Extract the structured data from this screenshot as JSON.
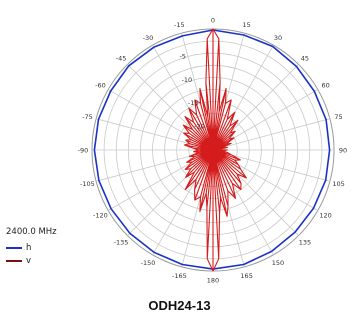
{
  "chart_data": {
    "type": "polar",
    "frequency_label": "2400.0 MHz",
    "caption": "ODH24-13",
    "angle_labels": [
      "0",
      "15",
      "30",
      "45",
      "60",
      "75",
      "90",
      "105",
      "120",
      "135",
      "150",
      "165",
      "180",
      "-165",
      "-150",
      "-135",
      "-120",
      "-105",
      "-90",
      "-75",
      "-60",
      "-45",
      "-30",
      "-15"
    ],
    "radial_labels": [
      "-5",
      "-10",
      "-15",
      "-20"
    ],
    "grid": true,
    "legend_position": "bottom-left",
    "series": [
      {
        "name": "h",
        "color": "#1a33c4",
        "angles": [
          -180,
          -165,
          -150,
          -135,
          -120,
          -105,
          -90,
          -75,
          -60,
          -45,
          -30,
          -15,
          0,
          15,
          30,
          45,
          60,
          75,
          90,
          105,
          120,
          135,
          150,
          165,
          180
        ],
        "values": [
          -0.4,
          -0.5,
          -0.6,
          -0.7,
          -0.7,
          -0.6,
          -0.5,
          -0.5,
          -0.6,
          -0.4,
          -0.5,
          -0.6,
          -0.2,
          -0.4,
          -0.3,
          -0.6,
          -0.8,
          -0.8,
          -0.9,
          -0.9,
          -1.0,
          -1.0,
          -0.8,
          -0.5,
          -0.4
        ]
      },
      {
        "name": "v",
        "color": "#d41c1c",
        "angles": [
          -180,
          -177,
          -174,
          -171,
          -168,
          -165,
          -160,
          -155,
          -150,
          -145,
          -140,
          -135,
          -130,
          -125,
          -120,
          -115,
          -110,
          -105,
          -100,
          -95,
          -90,
          -85,
          -80,
          -75,
          -70,
          -65,
          -60,
          -55,
          -50,
          -45,
          -40,
          -35,
          -30,
          -25,
          -20,
          -15,
          -12,
          -9,
          -6,
          -3,
          0,
          3,
          6,
          9,
          12,
          15,
          20,
          25,
          30,
          35,
          40,
          45,
          50,
          55,
          60,
          65,
          70,
          75,
          80,
          85,
          90,
          95,
          100,
          105,
          110,
          115,
          120,
          125,
          130,
          135,
          140,
          145,
          150,
          155,
          160,
          165,
          168,
          171,
          174,
          177,
          180
        ],
        "values": [
          0,
          -2.5,
          -13,
          -16,
          -12,
          -15,
          -14,
          -16,
          -18,
          -15,
          -19,
          -17,
          -19,
          -18,
          -20,
          -19,
          -21,
          -20,
          -22,
          -21,
          -22,
          -21,
          -19,
          -20,
          -19,
          -20,
          -18,
          -19,
          -17,
          -19,
          -16,
          -18,
          -15,
          -17,
          -14,
          -15,
          -12,
          -18,
          -11,
          -2,
          0,
          -2,
          -11,
          -17,
          -12,
          -15,
          -14,
          -18,
          -16,
          -19,
          -17,
          -20,
          -19,
          -21,
          -20,
          -22,
          -21,
          -23,
          -22,
          -24,
          -22,
          -23,
          -22,
          -21,
          -19,
          -20,
          -19,
          -18,
          -16,
          -18,
          -16,
          -15,
          -17,
          -14,
          -16,
          -13,
          -11,
          -15,
          -12,
          -2.5,
          0
        ]
      }
    ]
  }
}
